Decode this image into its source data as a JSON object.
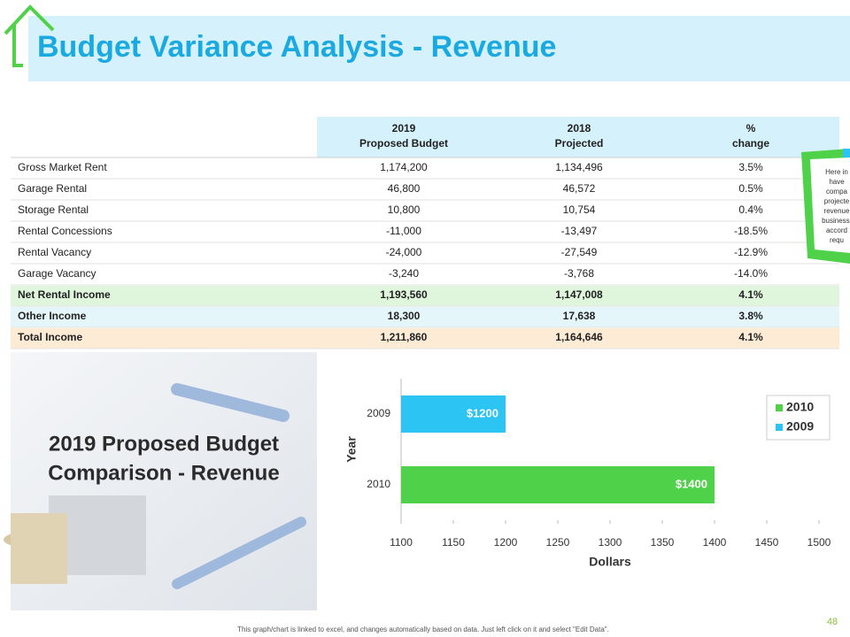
{
  "header": {
    "title": "Budget Variance Analysis - Revenue"
  },
  "table": {
    "columns": [
      [
        "2019",
        "Proposed Budget"
      ],
      [
        "2018",
        "Projected"
      ],
      [
        "%",
        "change"
      ]
    ],
    "rows": [
      [
        "Gross Market Rent",
        "1,174,200",
        "1,134,496",
        "3.5%"
      ],
      [
        "Garage Rental",
        "46,800",
        "46,572",
        "0.5%"
      ],
      [
        "Storage Rental",
        "10,800",
        "10,754",
        "0.4%"
      ],
      [
        "Rental Concessions",
        "-11,000",
        "-13,497",
        "-18.5%"
      ],
      [
        "Rental Vacancy",
        "-24,000",
        "-27,549",
        "-12.9%"
      ],
      [
        "Garage Vacancy",
        "-3,240",
        "-3,768",
        "-14.0%"
      ],
      [
        "Net Rental Income",
        "1,193,560",
        "1,147,008",
        "4.1%"
      ],
      [
        "Other Income",
        "18,300",
        "17,638",
        "3.8%"
      ],
      [
        "Total Income",
        "1,211,860",
        "1,164,646",
        "4.1%"
      ]
    ]
  },
  "note": {
    "lines": [
      "Here in",
      "have",
      "compa",
      "projecte",
      "revenue",
      "business.",
      "accord",
      "requ"
    ]
  },
  "image_heading": {
    "lines": [
      "2019 Proposed Budget",
      "Comparison - Revenue"
    ]
  },
  "chart_data": {
    "type": "hbar",
    "categories": [
      "2009",
      "2010"
    ],
    "series": [
      {
        "name": "2010",
        "color": "#4fd24a",
        "values": [
          null,
          1400
        ],
        "value_labels": [
          null,
          "$1400"
        ]
      },
      {
        "name": "2009",
        "color": "#2cc4f2",
        "values": [
          1200,
          null
        ],
        "value_labels": [
          "$1200",
          null
        ]
      }
    ],
    "xlim": [
      1100,
      1500
    ],
    "xticks": [
      1100,
      1150,
      1200,
      1250,
      1300,
      1350,
      1400,
      1450,
      1500
    ],
    "x_label": "Dollars",
    "y_label": "Year",
    "legend": "top-right"
  },
  "footer": {
    "text": "This graph/chart is linked to excel, and changes automatically based on data. Just left click on it and select \"Edit Data\".",
    "page": "48"
  }
}
